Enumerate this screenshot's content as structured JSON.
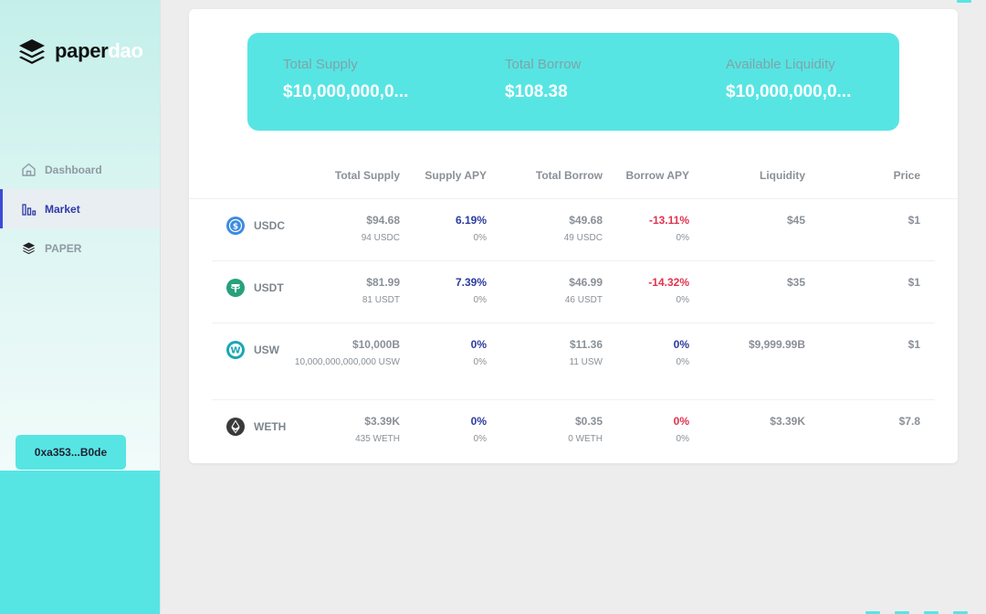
{
  "sidebar": {
    "logo_paper": "paper",
    "logo_dao": "dao",
    "nav": [
      {
        "label": "Dashboard",
        "icon": "home-icon"
      },
      {
        "label": "Market",
        "icon": "chart-bars-icon"
      },
      {
        "label": "PAPER",
        "icon": "paper-stack-icon"
      }
    ],
    "wallet": "0xa353...B0de"
  },
  "summary": {
    "total_supply_label": "Total Supply",
    "total_supply_value": "$10,000,000,0...",
    "total_borrow_label": "Total Borrow",
    "total_borrow_value": "$108.38",
    "available_liquidity_label": "Available Liquidity",
    "available_liquidity_value": "$10,000,000,0..."
  },
  "table": {
    "headers": {
      "total_supply": "Total Supply",
      "supply_apy": "Supply APY",
      "total_borrow": "Total Borrow",
      "borrow_apy": "Borrow APY",
      "liquidity": "Liquidity",
      "price": "Price"
    },
    "rows": [
      {
        "asset": "USDC",
        "icon": "usdc-icon",
        "icon_color": "#3b8be0",
        "supply": "$94.68",
        "supply_sub": "94 USDC",
        "supply_apy": "6.19%",
        "supply_apy_sub": "0%",
        "borrow": "$49.68",
        "borrow_sub": "49 USDC",
        "borrow_apy": "-13.11%",
        "borrow_apy_sub": "0%",
        "liquidity": "$45",
        "price": "$1"
      },
      {
        "asset": "USDT",
        "icon": "usdt-icon",
        "icon_color": "#26a17b",
        "supply": "$81.99",
        "supply_sub": "81 USDT",
        "supply_apy": "7.39%",
        "supply_apy_sub": "0%",
        "borrow": "$46.99",
        "borrow_sub": "46 USDT",
        "borrow_apy": "-14.32%",
        "borrow_apy_sub": "0%",
        "liquidity": "$35",
        "price": "$1"
      },
      {
        "asset": "USW",
        "icon": "usw-icon",
        "icon_color": "#1aa7b3",
        "supply": "$10,000B",
        "supply_sub": "10,000,000,000,000 USW",
        "supply_apy": "0%",
        "supply_apy_sub": "0%",
        "borrow": "$11.36",
        "borrow_sub": "11 USW",
        "borrow_apy": "0%",
        "borrow_apy_sub": "0%",
        "liquidity": "$9,999.99B",
        "price": "$1"
      },
      {
        "asset": "WETH",
        "icon": "eth-icon",
        "icon_color": "#3a3a3a",
        "supply": "$3.39K",
        "supply_sub": "435 WETH",
        "supply_apy": "0%",
        "supply_apy_sub": "0%",
        "borrow": "$0.35",
        "borrow_sub": "0 WETH",
        "borrow_apy": "0%",
        "borrow_apy_sub": "0%",
        "liquidity": "$3.39K",
        "price": "$7.8"
      }
    ]
  },
  "colors": {
    "accent": "#57e5e4",
    "positive_apy": "#2b3c9e",
    "negative_apy": "#e0344e",
    "active_nav": "#2c3aa8"
  }
}
